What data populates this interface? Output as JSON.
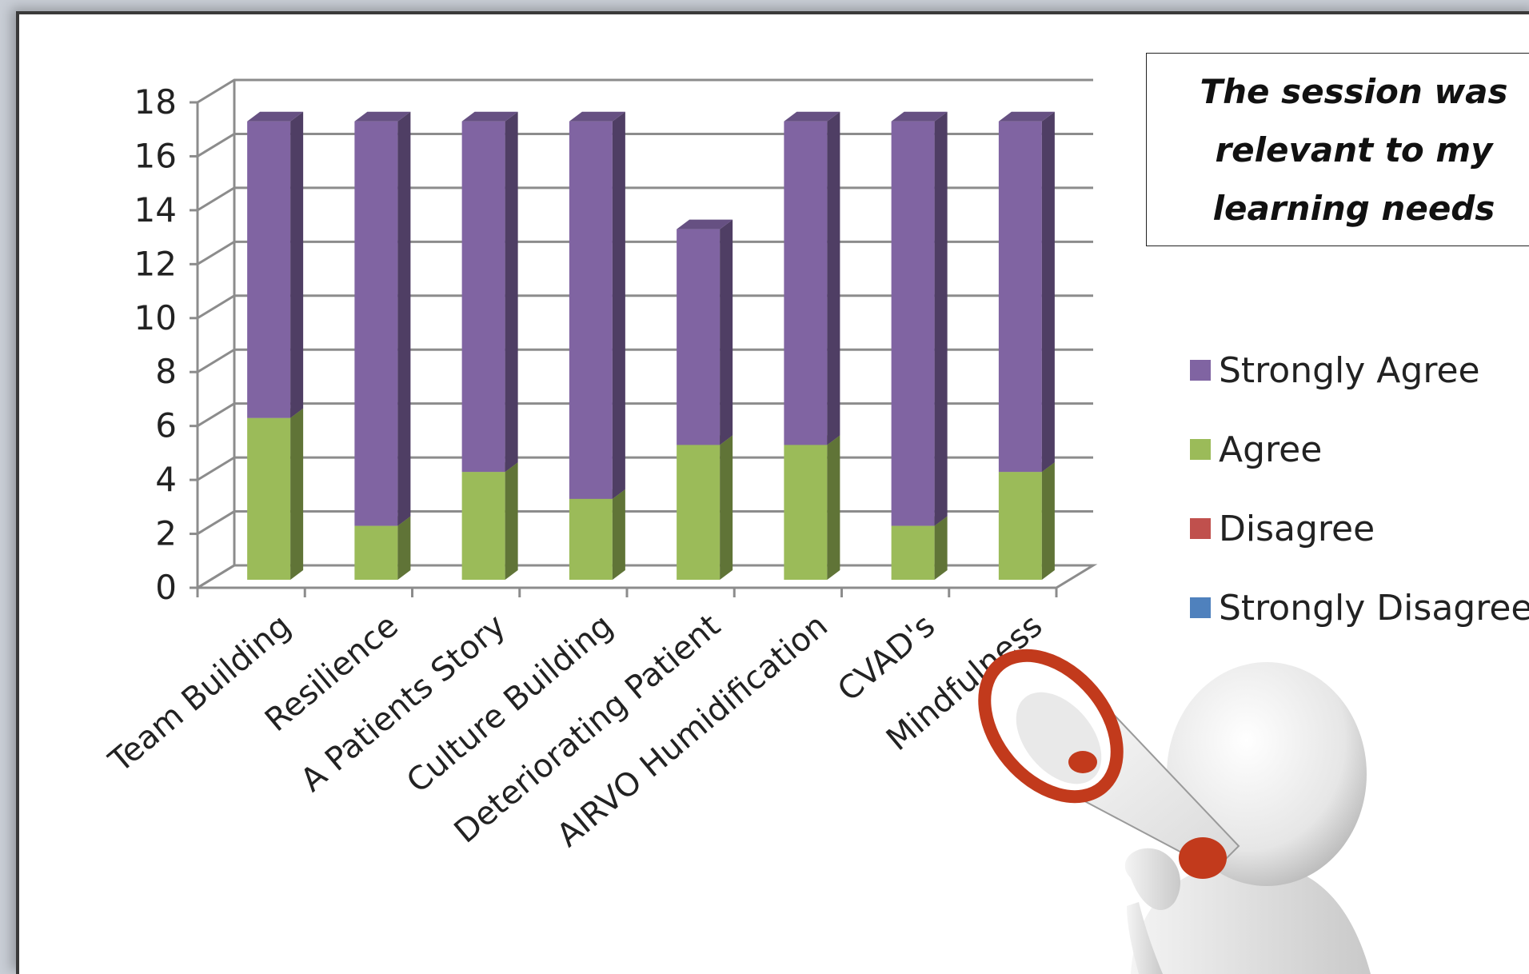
{
  "chart_data": {
    "type": "bar",
    "stacked": true,
    "three_d": true,
    "title": "The session was relevant to my learning needs",
    "xlabel": "",
    "ylabel": "",
    "ylim": [
      0,
      18
    ],
    "yticks": [
      0,
      2,
      4,
      6,
      8,
      10,
      12,
      14,
      16,
      18
    ],
    "grid": true,
    "legend_position": "right",
    "categories": [
      "Team Building",
      "Resilience",
      "A Patients Story",
      "Culture Building",
      "Deteriorating Patient",
      "AIRVO Humidification",
      "CVAD's",
      "Mindfulness"
    ],
    "series": [
      {
        "name": "Strongly Disagree",
        "values": [
          0,
          0,
          0,
          0,
          0,
          0,
          0,
          0
        ],
        "color": "#4f81bd"
      },
      {
        "name": "Disagree",
        "values": [
          0,
          0,
          0,
          0,
          0,
          0,
          0,
          0
        ],
        "color": "#c0504d"
      },
      {
        "name": "Agree",
        "values": [
          6,
          2,
          4,
          3,
          5,
          5,
          2,
          4
        ],
        "color": "#9bbb59"
      },
      {
        "name": "Strongly Agree",
        "values": [
          11,
          15,
          13,
          14,
          8,
          12,
          15,
          13
        ],
        "color": "#8064a2"
      }
    ],
    "legend_order": [
      "Strongly Agree",
      "Agree",
      "Disagree",
      "Strongly Disagree"
    ]
  },
  "illustration": {
    "icon": "megaphone-figure-icon"
  }
}
